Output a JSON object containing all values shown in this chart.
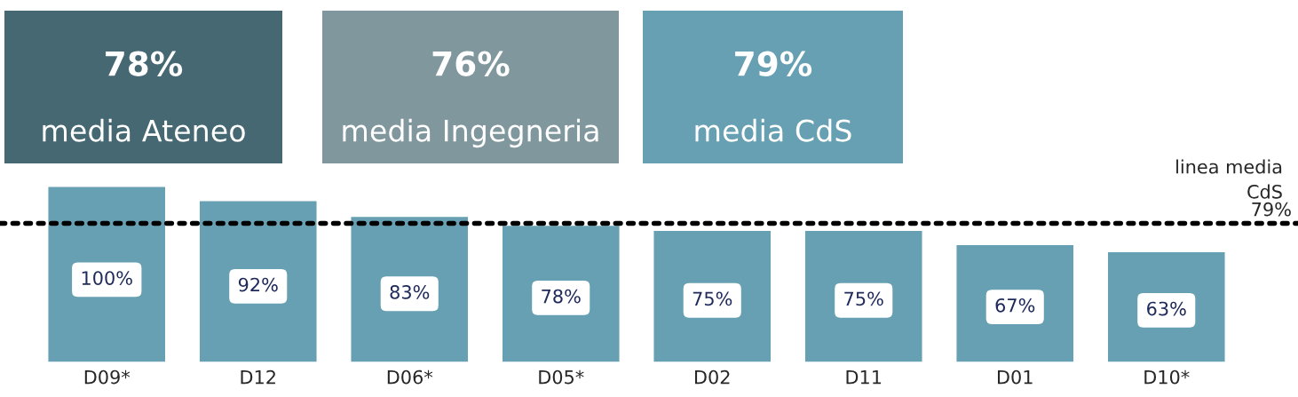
{
  "chart_data": [
    {
      "type": "other",
      "annotations": [
        "78%",
        "media Ateneo",
        "76%",
        "media Ingegneria",
        "79%",
        "media CdS"
      ],
      "colors": [
        "#456873",
        "#7f979d",
        "#67a0b2"
      ]
    },
    {
      "type": "bar",
      "categories": [
        "D09*",
        "D12",
        "D06*",
        "D05*",
        "D02",
        "D11",
        "D01",
        "D10*"
      ],
      "values": [
        100,
        92,
        83,
        78,
        75,
        75,
        67,
        63
      ],
      "color": "#67a0b2",
      "tick_labels": "x",
      "value_labels": [
        "100%",
        "92%",
        "83%",
        "78%",
        "75%",
        "75%",
        "67%",
        "63%"
      ],
      "annotations": [
        {
          "text": "79%",
          "y": 79
        }
      ],
      "ref_lines": [
        {
          "axis": "y",
          "value": 79,
          "label": "linea media\nCdS",
          "color": "#000000",
          "line_style": "dotted"
        }
      ]
    }
  ]
}
